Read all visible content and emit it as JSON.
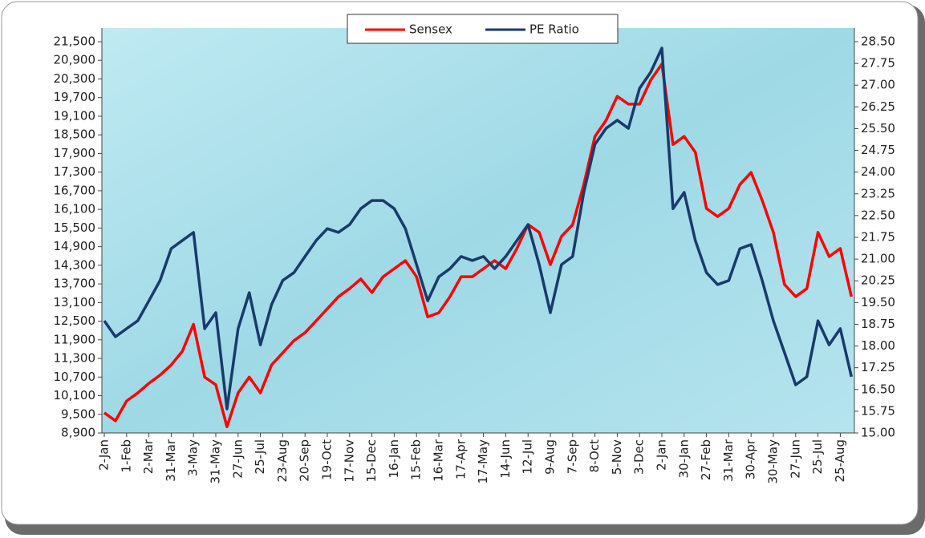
{
  "chart_data": {
    "type": "line",
    "categories": [
      "2-Jan",
      null,
      "1-Feb",
      null,
      "2-Mar",
      null,
      "31-Mar",
      null,
      "3-May",
      null,
      "31-May",
      null,
      "27-Jun",
      null,
      "25-Jul",
      null,
      "23-Aug",
      null,
      "20-Sep",
      null,
      "19-Oct",
      null,
      "17-Nov",
      null,
      "15-Dec",
      null,
      "16-Jan",
      null,
      "15-Feb",
      null,
      "16-Mar",
      null,
      "17-Apr",
      null,
      "17-May",
      null,
      "14-Jun",
      null,
      "12-Jul",
      null,
      "9-Aug",
      null,
      "7-Sep",
      null,
      "8-Oct",
      null,
      "5-Nov",
      null,
      "3-Dec",
      null,
      "2-Jan",
      null,
      "30-Jan",
      null,
      "27-Feb",
      null,
      "31-Mar",
      null,
      "30-Apr",
      null,
      "30-May",
      null,
      "27-Jun",
      null,
      "25-Jul",
      null,
      "25-Aug",
      null
    ],
    "series": [
      {
        "name": "Sensex",
        "color": "#ff0000",
        "axis": "y",
        "values": [
          9550,
          9290,
          9930,
          10190,
          10500,
          10760,
          11090,
          11530,
          12400,
          10700,
          10450,
          9100,
          10190,
          10700,
          10190,
          11090,
          11480,
          11870,
          12130,
          12510,
          12900,
          13290,
          13550,
          13860,
          13420,
          13930,
          14190,
          14450,
          13930,
          12640,
          12770,
          13290,
          13930,
          13930,
          14190,
          14450,
          14190,
          14840,
          15610,
          15360,
          14320,
          15230,
          15610,
          16900,
          18450,
          18970,
          19740,
          19490,
          19490,
          20260,
          20780,
          18190,
          18450,
          17940,
          16130,
          15870,
          16130,
          16900,
          17290,
          16390,
          15360,
          13680,
          13290,
          13550,
          15360,
          14580,
          14840,
          13290
        ]
      },
      {
        "name": "PE Ratio",
        "color": "#1a3a6b",
        "axis": "y2",
        "values": [
          18.87,
          18.32,
          18.6,
          18.87,
          19.56,
          20.26,
          21.36,
          21.64,
          21.92,
          18.6,
          19.15,
          15.83,
          18.6,
          19.84,
          18.04,
          19.43,
          20.26,
          20.53,
          21.09,
          21.64,
          22.05,
          21.92,
          22.19,
          22.74,
          23.02,
          23.02,
          22.74,
          22.05,
          20.81,
          19.56,
          20.39,
          20.67,
          21.09,
          20.95,
          21.09,
          20.67,
          21.09,
          21.64,
          22.19,
          20.81,
          19.15,
          20.81,
          21.09,
          23.3,
          24.96,
          25.51,
          25.79,
          25.51,
          26.89,
          27.45,
          28.28,
          22.74,
          23.3,
          21.64,
          20.53,
          20.12,
          20.26,
          21.36,
          21.5,
          20.26,
          18.87,
          17.77,
          16.66,
          16.94,
          18.87,
          18.04,
          18.6,
          16.94
        ]
      }
    ],
    "ylim": [
      8900,
      21500
    ],
    "yticks": [
      {
        "value": 8900,
        "label": "8,900"
      },
      {
        "value": 9500,
        "label": "9,500"
      },
      {
        "value": 10100,
        "label": "10,100"
      },
      {
        "value": 10700,
        "label": "10,700"
      },
      {
        "value": 11300,
        "label": "11,300"
      },
      {
        "value": 11900,
        "label": "11,900"
      },
      {
        "value": 12500,
        "label": "12,500"
      },
      {
        "value": 13100,
        "label": "13,100"
      },
      {
        "value": 13700,
        "label": "13,700"
      },
      {
        "value": 14300,
        "label": "14,300"
      },
      {
        "value": 14900,
        "label": "14,900"
      },
      {
        "value": 15500,
        "label": "15,500"
      },
      {
        "value": 16100,
        "label": "16,100"
      },
      {
        "value": 16700,
        "label": "16,700"
      },
      {
        "value": 17300,
        "label": "17,300"
      },
      {
        "value": 17900,
        "label": "17,900"
      },
      {
        "value": 18500,
        "label": "18,500"
      },
      {
        "value": 19100,
        "label": "19,100"
      },
      {
        "value": 19700,
        "label": "19,700"
      },
      {
        "value": 20300,
        "label": "20,300"
      },
      {
        "value": 20900,
        "label": "20,900"
      },
      {
        "value": 21500,
        "label": "21,500"
      }
    ],
    "y2lim": [
      15,
      28.5
    ],
    "y2ticks": [
      {
        "value": 15,
        "label": "15.00"
      },
      {
        "value": 15.75,
        "label": "15.75"
      },
      {
        "value": 16.5,
        "label": "16.50"
      },
      {
        "value": 17.25,
        "label": "17.25"
      },
      {
        "value": 18,
        "label": "18.00"
      },
      {
        "value": 18.75,
        "label": "18.75"
      },
      {
        "value": 19.5,
        "label": "19.50"
      },
      {
        "value": 20.25,
        "label": "20.25"
      },
      {
        "value": 21,
        "label": "21.00"
      },
      {
        "value": 21.75,
        "label": "21.75"
      },
      {
        "value": 22.5,
        "label": "22.50"
      },
      {
        "value": 23.25,
        "label": "23.25"
      },
      {
        "value": 24,
        "label": "24.00"
      },
      {
        "value": 24.75,
        "label": "24.75"
      },
      {
        "value": 25.5,
        "label": "25.50"
      },
      {
        "value": 26.25,
        "label": "26.25"
      },
      {
        "value": 27,
        "label": "27.00"
      },
      {
        "value": 27.75,
        "label": "27.75"
      },
      {
        "value": 28.5,
        "label": "28.50"
      }
    ],
    "legend": "top"
  }
}
